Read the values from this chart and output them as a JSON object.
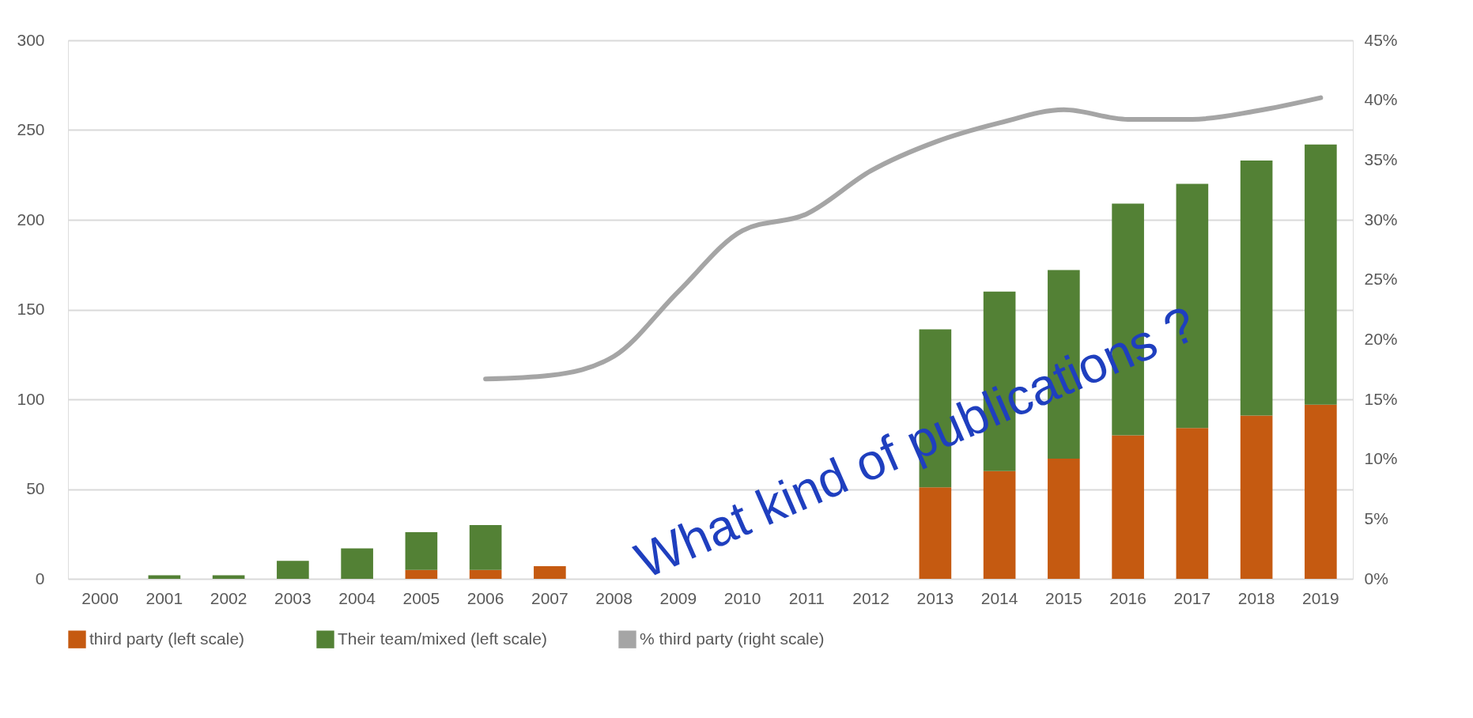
{
  "chart_data": {
    "type": "bar",
    "stacked": true,
    "categories": [
      "2000",
      "2001",
      "2002",
      "2003",
      "2004",
      "2005",
      "2006",
      "2007",
      "2008",
      "2009",
      "2010",
      "2011",
      "2012",
      "2013",
      "2014",
      "2015",
      "2016",
      "2017",
      "2018",
      "2019"
    ],
    "series": [
      {
        "name": "third party (left scale)",
        "color": "#c55a11",
        "values": [
          0,
          0,
          0,
          0,
          0,
          5,
          5,
          7,
          null,
          null,
          null,
          null,
          null,
          51,
          60,
          67,
          80,
          84,
          91,
          97
        ]
      },
      {
        "name": "Their team/mixed (left scale)",
        "color": "#538135",
        "values": [
          0,
          2,
          2,
          10,
          17,
          21,
          25,
          null,
          null,
          null,
          null,
          null,
          null,
          88,
          100,
          105,
          129,
          136,
          142,
          145
        ]
      },
      {
        "name": "% third party (right scale)",
        "color": "#a5a5a5",
        "type": "line",
        "axis": "y2",
        "values": [
          null,
          null,
          null,
          null,
          null,
          null,
          16.7,
          17.0,
          18.6,
          24,
          29.1,
          30.5,
          34.1,
          36.5,
          38.1,
          39.2,
          38.4,
          38.4,
          39.1,
          40.2
        ]
      }
    ],
    "ylim": [
      0,
      300
    ],
    "yticks": [
      0,
      50,
      100,
      150,
      200,
      250,
      300
    ],
    "y2lim": [
      0,
      45
    ],
    "y2ticks": [
      {
        "value": 0,
        "label": "0%"
      },
      {
        "value": 5,
        "label": "5%"
      },
      {
        "value": 10,
        "label": "10%"
      },
      {
        "value": 15,
        "label": "15%"
      },
      {
        "value": 20,
        "label": "20%"
      },
      {
        "value": 25,
        "label": "25%"
      },
      {
        "value": 30,
        "label": "30%"
      },
      {
        "value": 35,
        "label": "35%"
      },
      {
        "value": 40,
        "label": "40%"
      },
      {
        "value": 45,
        "label": "45%"
      }
    ],
    "grid": "y",
    "legend": "bottom",
    "annotations": [
      "What kind of publications ?"
    ]
  }
}
